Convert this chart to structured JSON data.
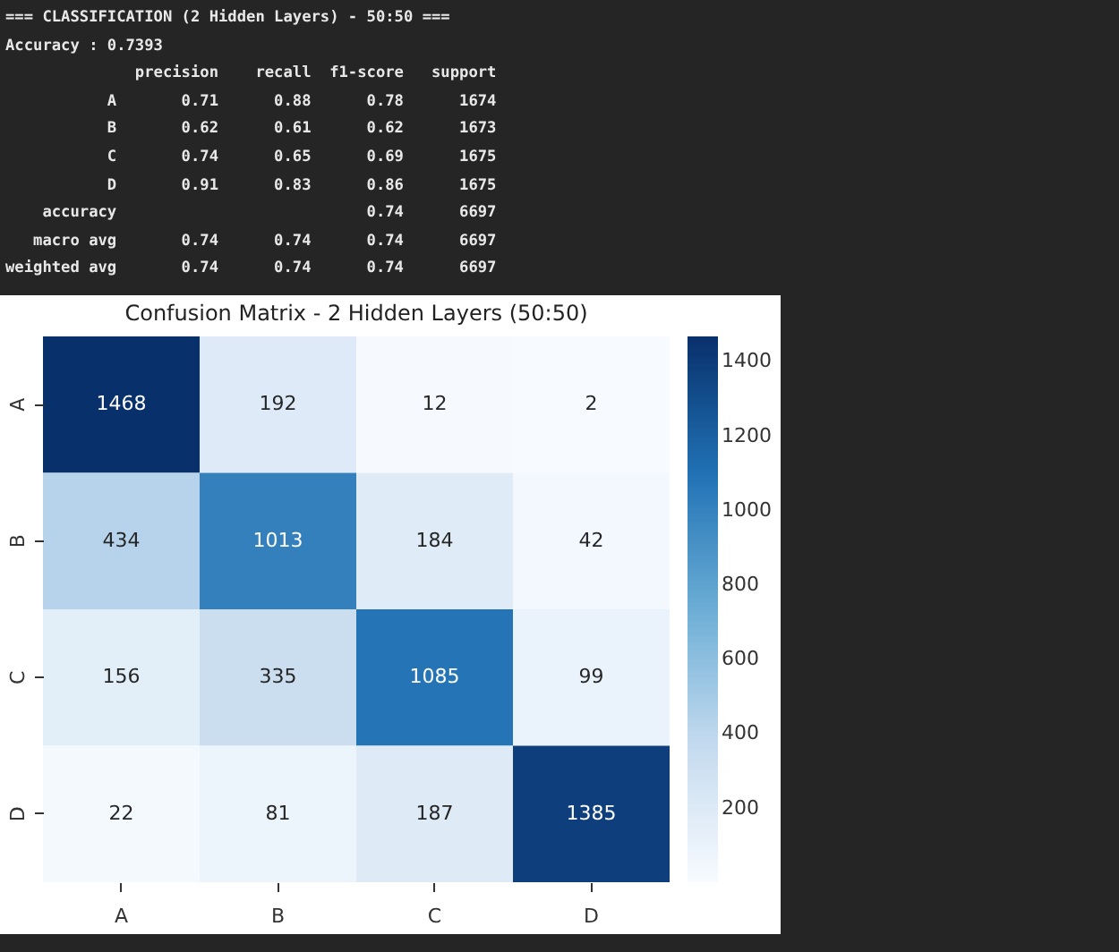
{
  "chart_data": {
    "type": "heatmap",
    "title": "Confusion Matrix - 2 Hidden Layers (50:50)",
    "categories": [
      "A",
      "B",
      "C",
      "D"
    ],
    "y_categories": [
      "A",
      "B",
      "C",
      "D"
    ],
    "cells": [
      [
        1468,
        192,
        12,
        2
      ],
      [
        434,
        1013,
        184,
        42
      ],
      [
        156,
        335,
        1085,
        99
      ],
      [
        22,
        81,
        187,
        1385
      ]
    ],
    "clim": [
      2,
      1468
    ],
    "cticks": [
      200,
      400,
      600,
      800,
      1000,
      1200,
      1400
    ],
    "data_labels": true,
    "annotations": [
      "=== CLASSIFICATION (2 Hidden Layers) - 50:50 ===",
      "Accuracy : 0.7393",
      "              precision    recall  f1-score   support",
      "           A       0.71      0.88      0.78      1674",
      "           B       0.62      0.61      0.62      1673",
      "           C       0.74      0.65      0.69      1675",
      "           D       0.91      0.83      0.86      1675",
      "    accuracy                           0.74      6697",
      "   macro avg       0.74      0.74      0.74      6697",
      "weighted avg       0.74      0.74      0.74      6697"
    ]
  }
}
